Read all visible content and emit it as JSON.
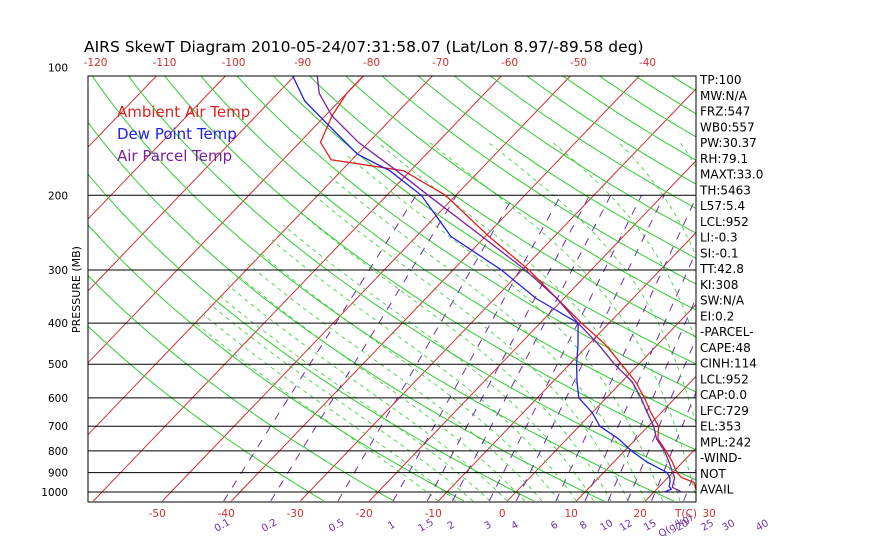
{
  "chart_data": {
    "type": "line",
    "title": "AIRS SkewT Diagram 2010-05-24/07:31:58.07 (Lat/Lon 8.97/-89.58 deg)",
    "ylabel": "PRESSURE (MB)",
    "y_scale": "log",
    "ylim": [
      1050,
      100
    ],
    "xlim_bottom": [
      -52,
      40
    ],
    "pressure_ticks": [
      "100",
      "200",
      "300",
      "400",
      "500",
      "600",
      "700",
      "800",
      "900",
      "1000"
    ],
    "temp_ticks_bottom": [
      "-50",
      "-40",
      "-30",
      "-20",
      "-10",
      "0",
      "10",
      "20",
      "30",
      "T(C)"
    ],
    "temp_ticks_top": [
      "-120",
      "-110",
      "-100",
      "-90",
      "-80",
      "-70",
      "-60",
      "-50",
      "-40"
    ],
    "mixing_ratio_labels": [
      "0.1",
      "0.2",
      "0.5",
      "1",
      "1.5",
      "2",
      "3",
      "4",
      "6",
      "8",
      "10",
      "12",
      "15",
      "20",
      "25",
      "30",
      "40",
      "Q(g/kg)"
    ],
    "legend": [
      {
        "name": "Ambient Air Temp",
        "color": "#e02020"
      },
      {
        "name": "Dew Point Temp",
        "color": "#2020e0"
      },
      {
        "name": "Air Parcel Temp",
        "color": "#7b1fa2"
      }
    ],
    "colors": {
      "isotherm": "#d03030",
      "dry_adiabat": "#33cc33",
      "moist_adiabat": "#33cc33",
      "mixing_ratio": "#7030a0",
      "isobar": "#000000"
    },
    "series": [
      {
        "name": "Ambient Air Temp",
        "pressure": [
          1000,
          980,
          950,
          925,
          900,
          850,
          800,
          750,
          700,
          650,
          600,
          550,
          500,
          450,
          400,
          350,
          300,
          250,
          200,
          175,
          165,
          150,
          130,
          115,
          100
        ],
        "temperature": [
          27.5,
          25.5,
          24.5,
          22,
          20.6,
          18.5,
          16,
          13.2,
          11.5,
          8.5,
          5.5,
          2.0,
          -2.5,
          -7.5,
          -14,
          -21,
          -29,
          -39.5,
          -51.5,
          -61,
          -73,
          -77,
          -79,
          -80,
          -80
        ]
      },
      {
        "name": "Dew Point Temp",
        "pressure": [
          1000,
          985,
          970,
          950,
          925,
          900,
          850,
          800,
          750,
          700,
          650,
          600,
          550,
          500,
          450,
          400,
          350,
          300,
          250,
          200,
          175,
          160,
          140,
          120,
          100
        ],
        "temperature": [
          21.5,
          22.1,
          21.4,
          21,
          20.3,
          19.2,
          14.8,
          11.0,
          7.5,
          3.0,
          0.0,
          -4.0,
          -6.5,
          -9.0,
          -11.5,
          -14.5,
          -24,
          -33,
          -45,
          -55,
          -63,
          -70,
          -77,
          -85,
          -92
        ]
      },
      {
        "name": "Air Parcel Temp",
        "pressure": [
          1000,
          975,
          950,
          925,
          900,
          850,
          800,
          750,
          700,
          650,
          600,
          550,
          500,
          450,
          400,
          350,
          300,
          250,
          200,
          175,
          150,
          130,
          115,
          100
        ],
        "temperature": [
          24,
          22,
          21.5,
          21,
          20,
          18,
          15.8,
          13,
          10.8,
          8,
          5,
          1.5,
          -3.5,
          -8.5,
          -14.5,
          -21,
          -29.5,
          -40.5,
          -54,
          -62,
          -71.5,
          -79,
          -84,
          -88
        ]
      }
    ],
    "stats": [
      "TP:100",
      "MW:N/A",
      "FRZ:547",
      "WB0:557",
      "PW:30.37",
      "RH:79.1",
      "MAXT:33.0",
      "TH:5463",
      "L57:5.4",
      "LCL:952",
      "LI:-0.3",
      "SI:-0.1",
      "TT:42.8",
      "KI:308",
      "SW:N/A",
      "EI:0.2",
      "-PARCEL-",
      "CAPE:48",
      "CINH:114",
      "LCL:952",
      "CAP:0.0",
      "LFC:729",
      "EL:353",
      "MPL:242",
      "-WIND-",
      "NOT",
      "AVAIL"
    ]
  }
}
